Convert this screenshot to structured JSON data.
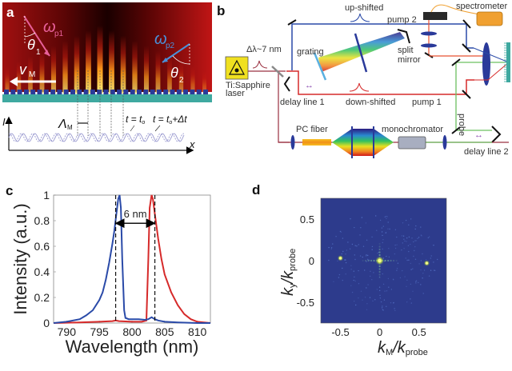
{
  "panel_a": {
    "label": "a",
    "omega_p1": "ω",
    "omega_p1_sub": "p1",
    "theta1": "θ",
    "theta1_sub": "1",
    "omega_p2": "ω",
    "omega_p2_sub": "p2",
    "theta2": "θ",
    "theta2_sub": "2",
    "velocity": "v",
    "velocity_sub": "M",
    "period": "Λ",
    "period_sub": "M",
    "axis_y": "I",
    "axis_x": "x",
    "t0_label": "t = t",
    "t0_sub": "o",
    "t1_label": "t = t",
    "t1_sub": "o",
    "t1_suffix": "+Δt",
    "colors": {
      "p1": "#e8609a",
      "p2": "#4a90d9",
      "substrate": "#3fa9a0",
      "grating": "#2a3a9a"
    }
  },
  "panel_b": {
    "label": "b",
    "laser": "Ti:Sapphire",
    "laser2": "laser",
    "bandwidth": "Δλ~7 nm",
    "grating": "grating",
    "up_shifted": "up-shifted",
    "down_shifted": "down-shifted",
    "pump2": "pump 2",
    "pump1": "pump 1",
    "split1": "split",
    "split2": "mirror",
    "spectrometer": "spectrometer",
    "delay1": "delay line 1",
    "delay2": "delay line 2",
    "probe": "probe",
    "pc_fiber": "PC fiber",
    "monochromator": "monochromator",
    "colors": {
      "pump2": "#2a4aa8",
      "pump1": "#d62a2a",
      "probe": "#6cc060",
      "laser_path": "#9a3040",
      "spectrometer": "#f0a030"
    }
  },
  "chart_data": [
    {
      "type": "line",
      "panel_label": "c",
      "title": "",
      "xlabel": "Wavelength (nm)",
      "ylabel": "Intensity (a.u.)",
      "xlim": [
        788,
        812
      ],
      "ylim": [
        0,
        1
      ],
      "xticks": [
        790,
        795,
        800,
        805,
        810
      ],
      "yticks": [
        0,
        0.2,
        0.4,
        0.6,
        0.8,
        1
      ],
      "ytick_labels": [
        "0",
        "0.2",
        "0.4",
        "0.6",
        "0.8",
        "1"
      ],
      "annotation": "6 nm",
      "dashed_lines_x": [
        797.5,
        803.5
      ],
      "arrow_y": 0.78,
      "series": [
        {
          "name": "blue (up-shifted)",
          "color": "#2a4aa8",
          "x": [
            788,
            790,
            792,
            793,
            794,
            795,
            795.5,
            796,
            796.5,
            797,
            797.3,
            797.6,
            797.9,
            798.1,
            798.3,
            798.5,
            798.8,
            799,
            799.5,
            800,
            801,
            802,
            802.5,
            803,
            803.5,
            804,
            805,
            807,
            810,
            812
          ],
          "y": [
            0,
            0.01,
            0.03,
            0.06,
            0.1,
            0.18,
            0.24,
            0.34,
            0.47,
            0.62,
            0.72,
            0.85,
            0.97,
            1.0,
            0.9,
            0.5,
            0.1,
            0.04,
            0.03,
            0.03,
            0.03,
            0.025,
            0.03,
            0.045,
            0.03,
            0.02,
            0.01,
            0.005,
            0,
            0
          ]
        },
        {
          "name": "red (down-shifted)",
          "color": "#d62a2a",
          "x": [
            788,
            792,
            795,
            797,
            797.5,
            798,
            800,
            801.5,
            802.2,
            802.5,
            802.7,
            803,
            803.2,
            803.5,
            804,
            804.5,
            805,
            806,
            807,
            808,
            809,
            810,
            812
          ],
          "y": [
            0,
            0.005,
            0.01,
            0.015,
            0.02,
            0.015,
            0.01,
            0.01,
            0.02,
            0.5,
            0.9,
            1.0,
            0.97,
            0.85,
            0.66,
            0.5,
            0.38,
            0.24,
            0.14,
            0.07,
            0.03,
            0.01,
            0
          ]
        }
      ]
    },
    {
      "type": "heatmap",
      "panel_label": "d",
      "title": "",
      "xlabel": "k_M/k_probe",
      "xlabel_main": "k",
      "xlabel_sub": "M",
      "xlabel_den": "k",
      "xlabel_den_sub": "probe",
      "ylabel_main": "k",
      "ylabel_sub": "y",
      "ylabel_den": "k",
      "ylabel_den_sub": "probe",
      "xlim": [
        -0.75,
        0.85
      ],
      "ylim": [
        -0.75,
        0.75
      ],
      "xticks": [
        -0.5,
        0,
        0.5
      ],
      "yticks": [
        -0.5,
        0,
        0.5
      ],
      "background": "#2d3b8c",
      "peaks": [
        {
          "kx": 0,
          "ky": 0,
          "intensity": 1.0
        },
        {
          "kx": -0.5,
          "ky": 0.03,
          "intensity": 0.8
        },
        {
          "kx": 0.6,
          "ky": -0.03,
          "intensity": 0.8
        }
      ]
    }
  ]
}
